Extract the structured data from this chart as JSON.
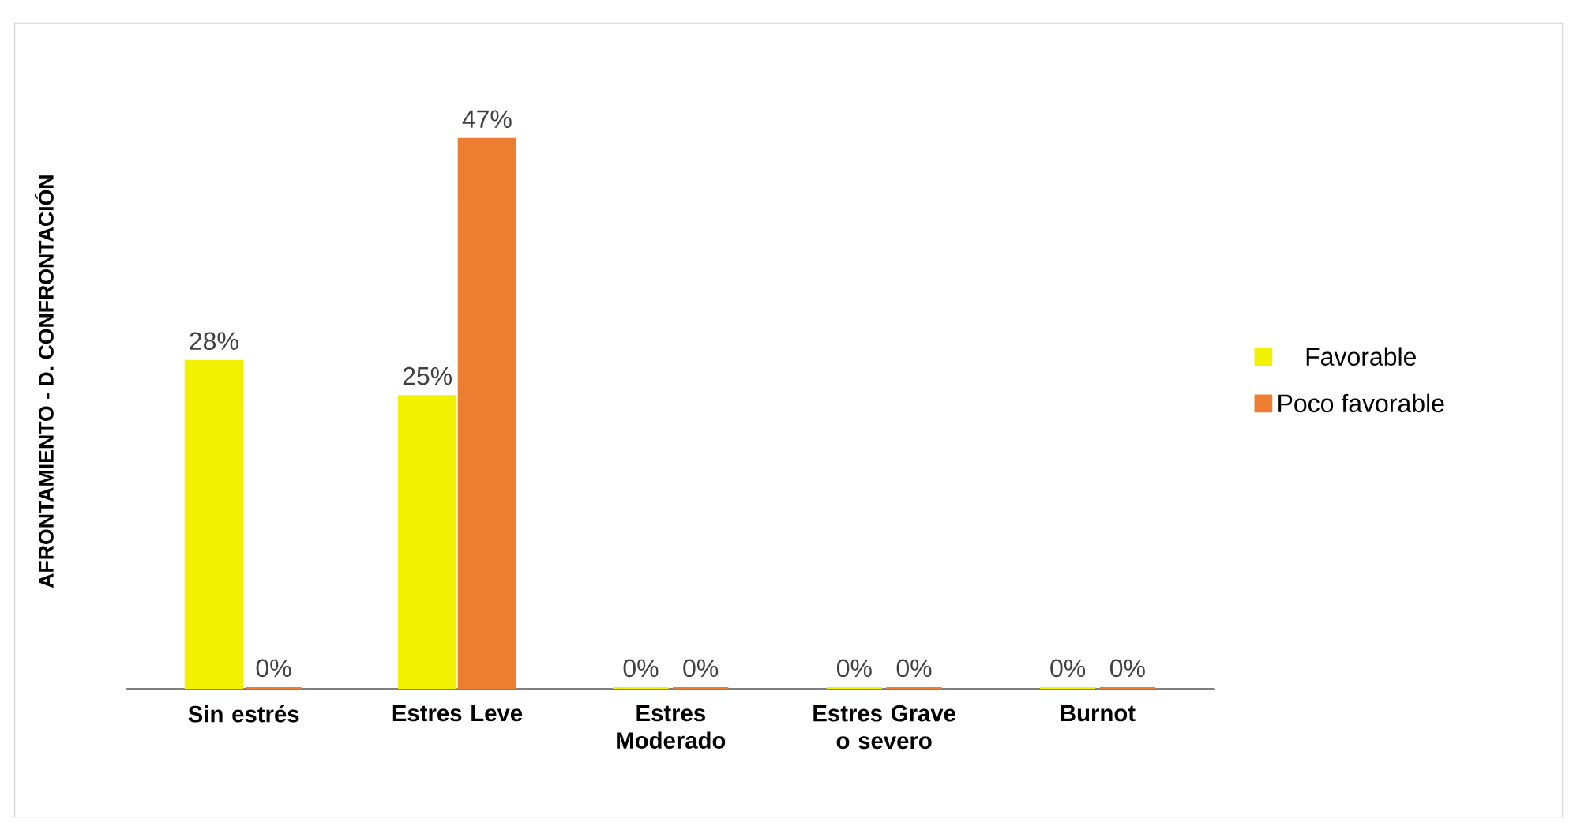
{
  "chart_data": {
    "type": "bar",
    "ylabel": "AFRONTAMIENTO - D. CONFRONTACIÓN",
    "categories": [
      "Sin estrés",
      "Estres Leve",
      "Estres Moderado",
      "Estres Grave o severo",
      "Burnot"
    ],
    "series": [
      {
        "name": "Favorable",
        "color": "#f2f200",
        "values": [
          28,
          25,
          0,
          0,
          0
        ],
        "value_labels": [
          "28%",
          "25%",
          "0%",
          "0%",
          "0%"
        ]
      },
      {
        "name": "Poco favorable",
        "color": "#ed7d31",
        "values": [
          0,
          47,
          0,
          0,
          0
        ],
        "value_labels": [
          "0%",
          "47%",
          "0%",
          "0%",
          "0%"
        ]
      }
    ],
    "tick_labels": "x",
    "legend": "right"
  }
}
